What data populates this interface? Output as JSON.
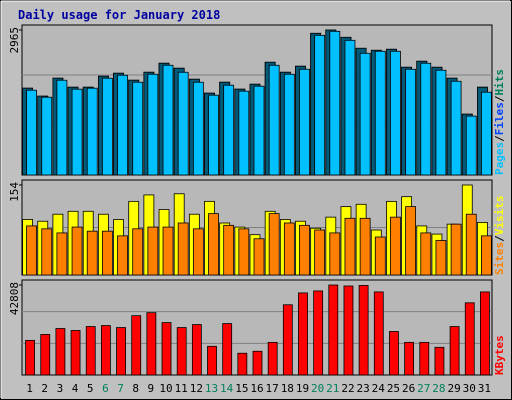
{
  "chart_data": [
    {
      "type": "bar",
      "title": "Daily usage for January 2018",
      "ylim": [
        0,
        2965
      ],
      "yticks": [
        2965
      ],
      "series": [
        {
          "name": "Hits",
          "color": "#00805c",
          "values": [
            1775,
            1612,
            1979,
            1795,
            1795,
            2020,
            2081,
            1938,
            2101,
            2285,
            2183,
            1958,
            1673,
            1897,
            1755,
            1856,
            2305,
            2101,
            2224,
            2897,
            2965,
            2815,
            2591,
            2550,
            2571,
            2203,
            2326,
            2203,
            1979,
            1244,
            1795
          ]
        },
        {
          "name": "Files",
          "color": "#0040ff",
          "bar_color": "#005a78",
          "values": [
            1775,
            1612,
            1979,
            1795,
            1795,
            2020,
            2081,
            1938,
            2101,
            2285,
            2183,
            1958,
            1673,
            1897,
            1755,
            1856,
            2305,
            2101,
            2224,
            2897,
            2965,
            2815,
            2591,
            2550,
            2571,
            2203,
            2326,
            2203,
            1979,
            1244,
            1795
          ]
        },
        {
          "name": "Pages",
          "color": "#00c0ff",
          "values": [
            1734,
            1591,
            1938,
            1755,
            1775,
            1979,
            2040,
            1897,
            2060,
            2244,
            2101,
            1897,
            1632,
            1836,
            1714,
            1816,
            2244,
            2060,
            2162,
            2856,
            2938,
            2754,
            2489,
            2530,
            2530,
            2162,
            2285,
            2142,
            1917,
            1204,
            1693
          ]
        }
      ],
      "legend_separator": "/"
    },
    {
      "type": "bar",
      "ylim": [
        0,
        154
      ],
      "yticks": [
        154
      ],
      "series": [
        {
          "name": "Visits",
          "color": "#ffff00",
          "values": [
            95,
            92,
            104,
            109,
            109,
            104,
            95,
            126,
            137,
            112,
            139,
            104,
            126,
            89,
            82,
            69,
            109,
            95,
            92,
            80,
            99,
            117,
            121,
            77,
            126,
            134,
            84,
            70,
            87,
            154,
            90
          ]
        },
        {
          "name": "Sites",
          "color": "#ff8000",
          "values": [
            84,
            79,
            72,
            82,
            75,
            75,
            67,
            79,
            82,
            82,
            89,
            79,
            105,
            85,
            79,
            62,
            105,
            89,
            85,
            77,
            72,
            97,
            97,
            65,
            99,
            117,
            72,
            59,
            87,
            104,
            67
          ]
        }
      ],
      "legend_separator": "/"
    },
    {
      "type": "bar",
      "ylim": [
        0,
        42808
      ],
      "yticks": [
        42808
      ],
      "series": [
        {
          "name": "KBytes",
          "color": "#ff0000",
          "values": [
            16464,
            19286,
            22109,
            21168,
            23050,
            23520,
            22579,
            28224,
            29635,
            24931,
            22579,
            23990,
            13642,
            24461,
            10349,
            11290,
            15523,
            33398,
            39043,
            39984,
            42808,
            42338,
            42600,
            39514,
            20698,
            15523,
            15523,
            13171,
            23050,
            34339,
            39514
          ]
        }
      ],
      "categories": [
        "1",
        "2",
        "3",
        "4",
        "5",
        "6",
        "7",
        "8",
        "9",
        "10",
        "11",
        "12",
        "13",
        "14",
        "15",
        "16",
        "17",
        "18",
        "19",
        "20",
        "21",
        "22",
        "23",
        "24",
        "25",
        "26",
        "27",
        "28",
        "29",
        "30",
        "31"
      ],
      "weekend_days": [
        5,
        6,
        12,
        13,
        19,
        20,
        26,
        27
      ],
      "weekend_color": "#00805c",
      "weekday_color": "#000000"
    }
  ]
}
